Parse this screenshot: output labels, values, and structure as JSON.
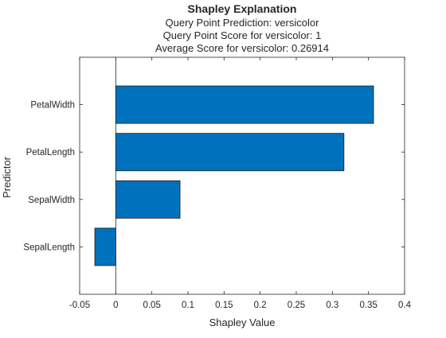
{
  "chart_data": {
    "type": "bar",
    "orientation": "horizontal",
    "title": "Shapley Explanation",
    "subtitles": [
      "Query Point Prediction: versicolor",
      "Query Point Score for versicolor: 1",
      "Average Score for versicolor: 0.26914"
    ],
    "xlabel": "Shapley Value",
    "ylabel": "Predictor",
    "categories": [
      "PetalWidth",
      "PetalLength",
      "SepalWidth",
      "SepalLength"
    ],
    "values": [
      0.357,
      0.316,
      0.089,
      -0.029
    ],
    "xlim": [
      -0.05,
      0.4
    ],
    "xticks": [
      -0.05,
      0,
      0.05,
      0.1,
      0.15,
      0.2,
      0.25,
      0.3,
      0.35,
      0.4
    ],
    "xtick_labels": [
      "-0.05",
      "0",
      "0.05",
      "0.1",
      "0.15",
      "0.2",
      "0.25",
      "0.3",
      "0.35",
      "0.4"
    ],
    "grid": false,
    "bar_color": "#0072bd",
    "zero_line": true
  }
}
